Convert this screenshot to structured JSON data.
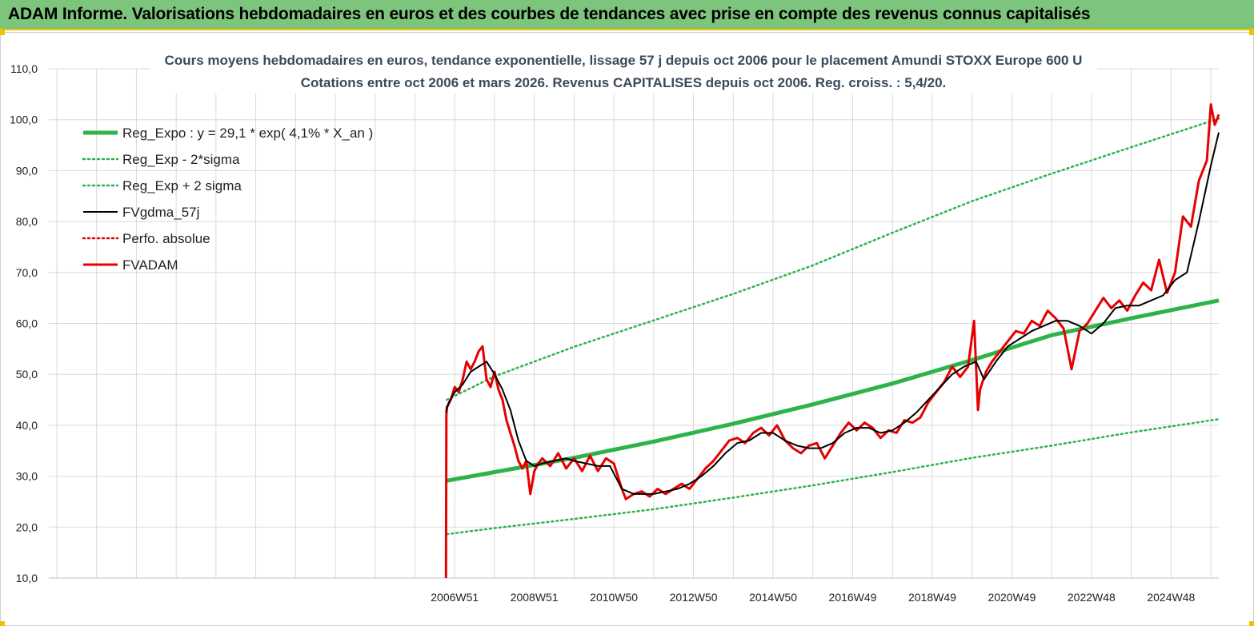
{
  "banner": {
    "title": "ADAM Informe. Valorisations hebdomadaires en euros et des courbes de tendances avec prise en compte des revenus connus capitalisés"
  },
  "chart_data": {
    "type": "line",
    "title_line1": "Cours moyens hebdomadaires en euros, tendance exponentielle, lissage 57 j depuis oct 2006 pour le placement Amundi STOXX Europe 600 U",
    "title_line2": "Cotations entre oct 2006 et mars 2026. Revenus CAPITALISES depuis oct 2006. Reg. croiss. : 5,4/20.",
    "ylim": [
      10,
      110
    ],
    "y_ticks": [
      "10,0",
      "20,0",
      "30,0",
      "40,0",
      "50,0",
      "60,0",
      "70,0",
      "80,0",
      "90,0",
      "100,0",
      "110,0"
    ],
    "x_ticks": [
      "2006W51",
      "2008W51",
      "2010W50",
      "2012W50",
      "2014W50",
      "2016W49",
      "2018W49",
      "2020W49",
      "2022W48",
      "2024W48"
    ],
    "x_range_years": [
      1996.8,
      2026.2
    ],
    "x_tick_years": [
      2007,
      2009,
      2011,
      2013,
      2015,
      2017,
      2019,
      2021,
      2023,
      2025
    ],
    "grid": true,
    "legend_position": "top-left",
    "legend": [
      {
        "label": "Reg_Expo : y = 29,1 * exp( 4,1% *  X_an )",
        "color": "#2eb34a",
        "style": "solid-thick"
      },
      {
        "label": "Reg_Exp - 2*sigma",
        "color": "#2eb34a",
        "style": "dotted"
      },
      {
        "label": "Reg_Exp + 2 sigma",
        "color": "#2eb34a",
        "style": "dotted"
      },
      {
        "label": "FVgdma_57j",
        "color": "#000000",
        "style": "solid"
      },
      {
        "label": "Perfo. absolue",
        "color": "#e00000",
        "style": "dotted"
      },
      {
        "label": "FVADAM",
        "color": "#e60000",
        "style": "solid-thick"
      }
    ],
    "series": [
      {
        "name": "Reg_Expo : y = 29,1 * exp( 4,1% *  X_an )",
        "x": [
          2006.8,
          2008,
          2010,
          2012,
          2014,
          2016,
          2018,
          2020,
          2022,
          2024,
          2026.2
        ],
        "y": [
          29.1,
          30.8,
          33.6,
          36.8,
          40.3,
          44.1,
          48.2,
          52.8,
          57.7,
          61.0,
          64.5
        ]
      },
      {
        "name": "Reg_Exp - 2*sigma",
        "x": [
          2006.8,
          2008,
          2010,
          2012,
          2014,
          2016,
          2018,
          2020,
          2022,
          2024,
          2026.2
        ],
        "y": [
          18.6,
          19.8,
          21.6,
          23.5,
          25.8,
          28.2,
          30.8,
          33.6,
          36.0,
          38.6,
          41.2
        ]
      },
      {
        "name": "Reg_Exp + 2 sigma",
        "x": [
          2006.8,
          2008,
          2010,
          2012,
          2014,
          2016,
          2018,
          2020,
          2022,
          2024,
          2026.2
        ],
        "y": [
          45.0,
          49.6,
          55.4,
          60.6,
          65.8,
          71.4,
          77.8,
          84.0,
          89.4,
          94.6,
          100.2
        ]
      },
      {
        "name": "FVgdma_57j",
        "x": [
          2006.78,
          2006.85,
          2007.0,
          2007.2,
          2007.4,
          2007.6,
          2007.8,
          2008.0,
          2008.2,
          2008.4,
          2008.6,
          2008.8,
          2009.0,
          2009.2,
          2009.5,
          2009.8,
          2010.0,
          2010.3,
          2010.6,
          2010.9,
          2011.2,
          2011.5,
          2011.7,
          2012.0,
          2012.3,
          2012.6,
          2012.9,
          2013.2,
          2013.5,
          2013.8,
          2014.1,
          2014.4,
          2014.7,
          2015.0,
          2015.3,
          2015.6,
          2015.9,
          2016.2,
          2016.5,
          2016.8,
          2017.1,
          2017.4,
          2017.7,
          2018.0,
          2018.3,
          2018.6,
          2018.9,
          2019.2,
          2019.5,
          2019.8,
          2020.1,
          2020.3,
          2020.6,
          2020.9,
          2021.2,
          2021.5,
          2021.8,
          2022.1,
          2022.4,
          2022.7,
          2023.0,
          2023.3,
          2023.6,
          2023.9,
          2024.2,
          2024.5,
          2024.8,
          2025.1,
          2025.4,
          2025.7,
          2026.0,
          2026.2
        ],
        "y": [
          42.5,
          44.5,
          46.5,
          48.0,
          50.5,
          51.5,
          52.5,
          50.0,
          47.0,
          43.0,
          37.0,
          33.0,
          32.0,
          32.5,
          33.0,
          33.5,
          33.0,
          32.5,
          32.0,
          32.0,
          27.5,
          26.5,
          26.5,
          26.5,
          27.0,
          27.5,
          28.5,
          30.0,
          32.0,
          34.5,
          36.5,
          37.0,
          38.5,
          38.5,
          37.0,
          36.0,
          35.5,
          35.5,
          36.5,
          38.5,
          39.5,
          39.5,
          38.5,
          39.0,
          40.5,
          42.5,
          45.0,
          47.5,
          50.0,
          51.5,
          52.5,
          49.0,
          52.5,
          55.5,
          57.0,
          58.5,
          59.5,
          60.5,
          60.5,
          59.5,
          58.0,
          60.0,
          63.0,
          63.5,
          63.5,
          64.5,
          65.5,
          68.5,
          70.0,
          80.0,
          91.0,
          97.5
        ]
      },
      {
        "name": "FVADAM",
        "x": [
          2006.78,
          2006.79,
          2006.8,
          2006.9,
          2007.0,
          2007.1,
          2007.2,
          2007.3,
          2007.4,
          2007.5,
          2007.6,
          2007.7,
          2007.8,
          2007.9,
          2008.0,
          2008.1,
          2008.2,
          2008.3,
          2008.4,
          2008.5,
          2008.6,
          2008.7,
          2008.8,
          2008.9,
          2009.0,
          2009.1,
          2009.2,
          2009.4,
          2009.6,
          2009.8,
          2010.0,
          2010.2,
          2010.4,
          2010.6,
          2010.8,
          2011.0,
          2011.2,
          2011.3,
          2011.5,
          2011.7,
          2011.9,
          2012.1,
          2012.3,
          2012.5,
          2012.7,
          2012.9,
          2013.1,
          2013.3,
          2013.5,
          2013.7,
          2013.9,
          2014.1,
          2014.3,
          2014.5,
          2014.7,
          2014.9,
          2015.1,
          2015.3,
          2015.5,
          2015.7,
          2015.9,
          2016.1,
          2016.3,
          2016.5,
          2016.7,
          2016.9,
          2017.1,
          2017.3,
          2017.5,
          2017.7,
          2017.9,
          2018.1,
          2018.3,
          2018.5,
          2018.7,
          2018.9,
          2019.1,
          2019.3,
          2019.5,
          2019.7,
          2019.9,
          2020.05,
          2020.15,
          2020.2,
          2020.35,
          2020.5,
          2020.7,
          2020.9,
          2021.1,
          2021.3,
          2021.5,
          2021.7,
          2021.9,
          2022.1,
          2022.3,
          2022.5,
          2022.7,
          2022.9,
          2023.1,
          2023.3,
          2023.5,
          2023.7,
          2023.9,
          2024.1,
          2024.3,
          2024.5,
          2024.7,
          2024.9,
          2025.1,
          2025.3,
          2025.5,
          2025.7,
          2025.9,
          2026.0,
          2026.1,
          2026.2
        ],
        "y": [
          10.0,
          42.0,
          43.5,
          45.0,
          47.5,
          46.5,
          49.0,
          52.5,
          51.0,
          52.5,
          54.5,
          55.5,
          49.0,
          47.5,
          50.5,
          47.0,
          45.0,
          41.0,
          38.5,
          36.0,
          33.0,
          31.5,
          33.0,
          26.5,
          31.0,
          32.5,
          33.5,
          32.0,
          34.5,
          31.5,
          33.5,
          31.0,
          34.0,
          31.0,
          33.5,
          32.5,
          27.5,
          25.5,
          26.5,
          27.0,
          26.0,
          27.5,
          26.5,
          27.5,
          28.5,
          27.5,
          29.5,
          31.5,
          33.0,
          35.0,
          37.0,
          37.5,
          36.5,
          38.5,
          39.5,
          38.0,
          40.0,
          37.0,
          35.5,
          34.5,
          36.0,
          36.5,
          33.5,
          36.0,
          38.5,
          40.5,
          39.0,
          40.5,
          39.5,
          37.5,
          39.0,
          38.5,
          41.0,
          40.5,
          41.5,
          44.5,
          46.5,
          48.5,
          51.5,
          49.5,
          51.5,
          60.5,
          43.0,
          47.0,
          50.5,
          52.5,
          54.5,
          56.5,
          58.5,
          58.0,
          60.5,
          59.5,
          62.5,
          61.0,
          59.0,
          51.0,
          58.5,
          60.0,
          62.5,
          65.0,
          63.0,
          64.5,
          62.5,
          65.5,
          68.0,
          66.5,
          72.5,
          66.0,
          70.0,
          81.0,
          79.0,
          88.0,
          92.0,
          103.0,
          99.0,
          101.0
        ]
      }
    ]
  }
}
